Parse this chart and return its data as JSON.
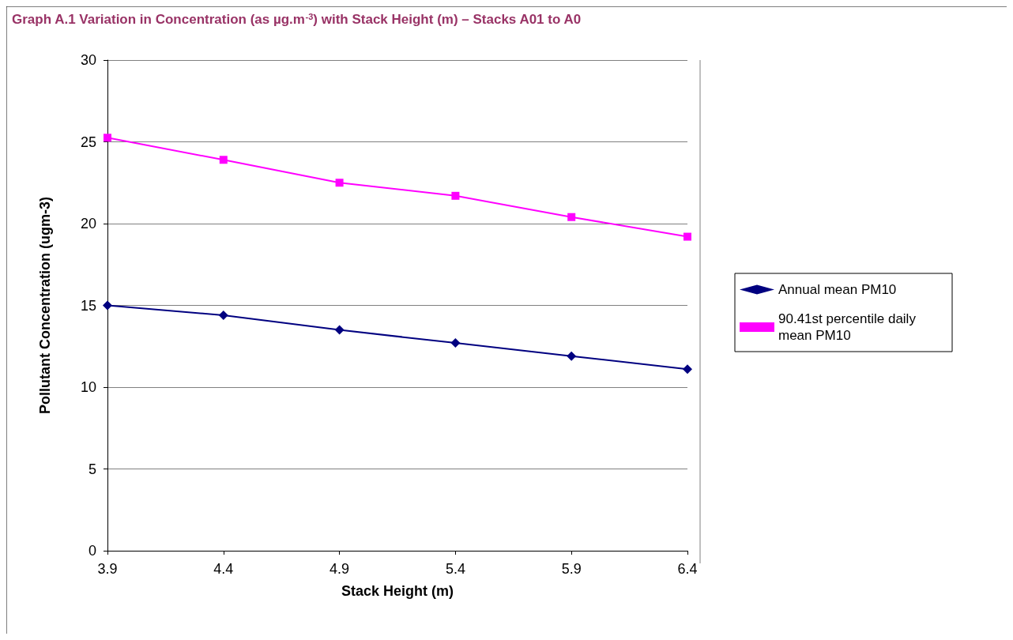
{
  "chart_data": {
    "type": "line",
    "title": "Graph A.1 Variation in Concentration (as µg.m$^{-3}$) with Stack Height (m) – Stacks A01 to A0",
    "xlabel": "Stack Height (m)",
    "ylabel": "Pollutant Concentration (ugm-3)",
    "categories": [
      "3.9",
      "4.4",
      "4.9",
      "5.4",
      "5.9",
      "6.4"
    ],
    "series": [
      {
        "name": "Annual mean PM10",
        "color": "#000080",
        "marker": "diamond",
        "values": [
          15.0,
          14.4,
          13.5,
          12.7,
          11.9,
          11.1
        ]
      },
      {
        "name": "90.41st percentile daily mean PM10",
        "color": "#ff00ff",
        "marker": "square",
        "values": [
          25.25,
          23.9,
          22.5,
          21.7,
          20.4,
          19.2
        ]
      }
    ],
    "ylim": [
      0,
      30
    ],
    "yticks": [
      0,
      5,
      10,
      15,
      20,
      25,
      30
    ],
    "grid": "y",
    "legend": "right",
    "line_style": "solid"
  }
}
